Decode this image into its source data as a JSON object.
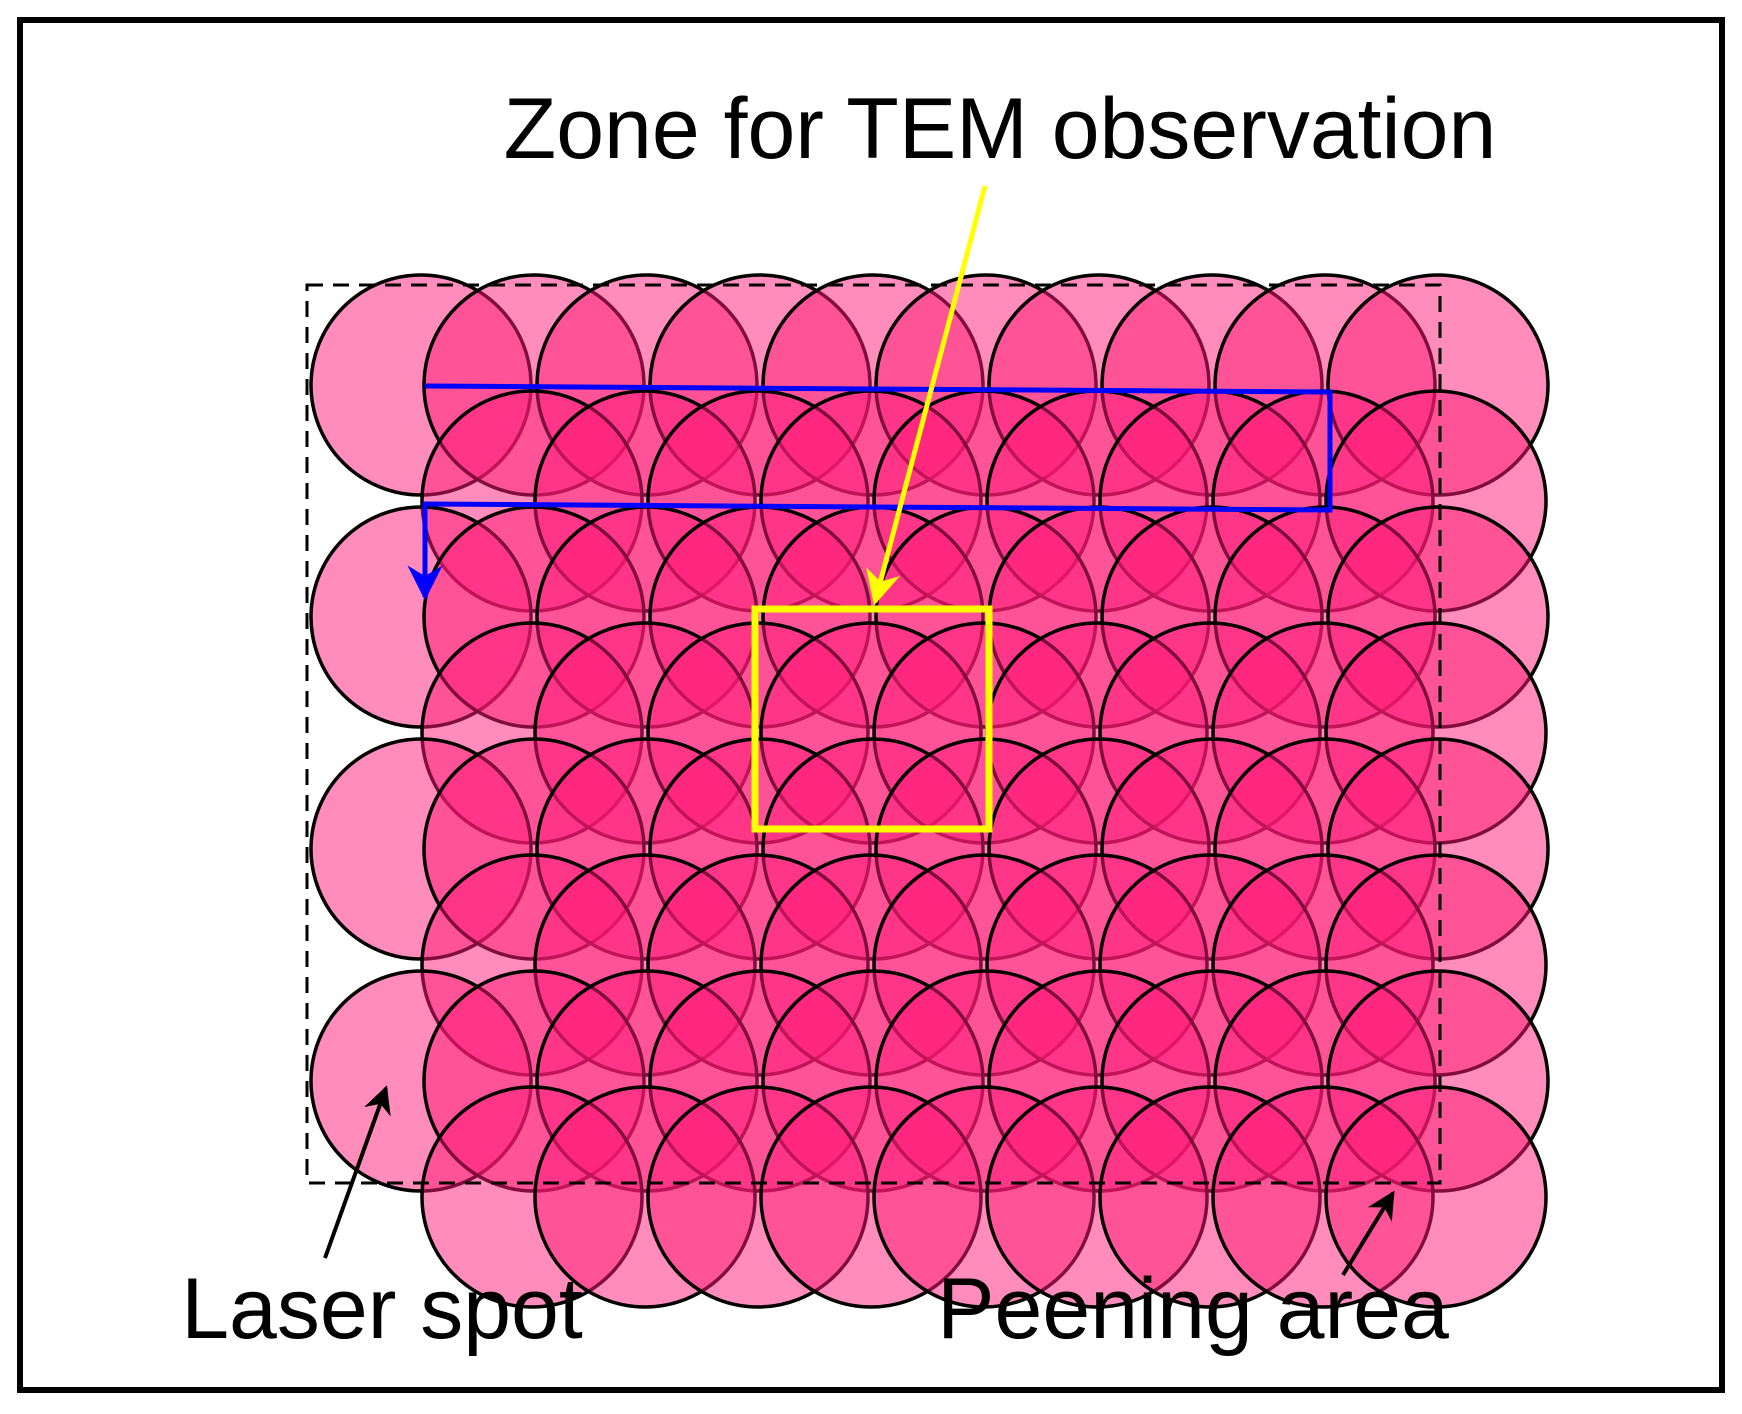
{
  "labels": {
    "zone": "Zone for TEM observation",
    "laser_spot": "Laser spot",
    "peening_area": "Peening area"
  },
  "grid": {
    "rows": 8,
    "spots_per_row": [
      10,
      9,
      10,
      9,
      10,
      9,
      10,
      9
    ]
  },
  "colors": {
    "spot_fill": "#ff1a75",
    "spot_stroke": "#000000",
    "scan_path": "#0000ff",
    "tem_zone": "#ffff00",
    "pointer_zone": "#ffff00",
    "pointer_labels": "#000000",
    "peening_area_border": "#000000",
    "frame": "#000000"
  },
  "icons": {
    "scan_path_arrow": "arrow-down-icon",
    "zone_pointer": "arrow-icon",
    "laser_spot_pointer": "arrow-icon",
    "peening_area_pointer": "arrow-icon"
  }
}
